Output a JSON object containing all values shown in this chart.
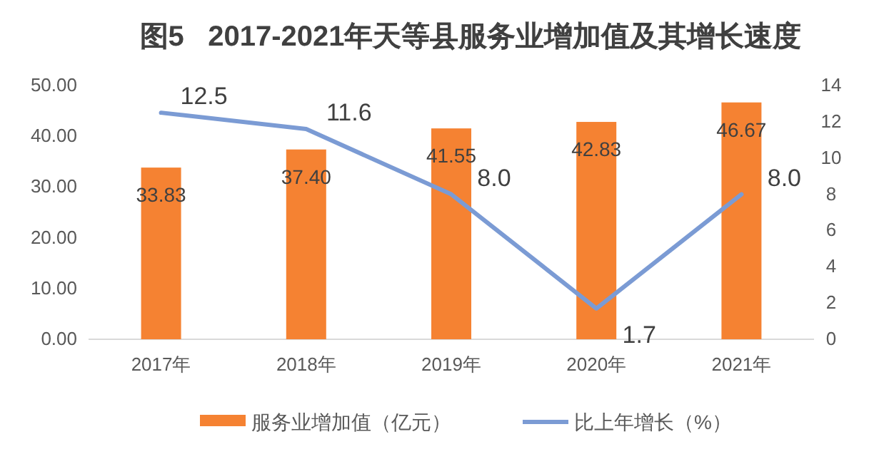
{
  "chart_data": {
    "type": "bar",
    "title": "图5   2017-2021年天等县服务业增加值及其增长速度",
    "categories": [
      "2017年",
      "2018年",
      "2019年",
      "2020年",
      "2021年"
    ],
    "series": [
      {
        "name": "服务业增加值（亿元）",
        "color": "#f58232",
        "values": [
          33.83,
          37.4,
          41.55,
          42.83,
          46.67
        ],
        "value_labels": [
          "33.83",
          "37.40",
          "41.55",
          "42.83",
          "46.67"
        ]
      },
      {
        "type": "line",
        "axis": "y2",
        "name": "比上年增长（%）",
        "color": "#7b9bd4",
        "values": [
          12.5,
          11.6,
          8.0,
          1.7,
          8.0
        ],
        "value_labels": [
          "12.5",
          "11.6",
          "8.0",
          "1.7",
          "8.0"
        ]
      }
    ],
    "ylim": [
      0,
      50
    ],
    "yticks": [
      {
        "value": 0,
        "label": "0.00"
      },
      {
        "value": 10,
        "label": "10.00"
      },
      {
        "value": 20,
        "label": "20.00"
      },
      {
        "value": 30,
        "label": "30.00"
      },
      {
        "value": 40,
        "label": "40.00"
      },
      {
        "value": 50,
        "label": "50.00"
      }
    ],
    "y2lim": [
      0,
      14
    ],
    "y2ticks": [
      0,
      2,
      4,
      6,
      8,
      10,
      12,
      14
    ],
    "legend": "bottom"
  }
}
